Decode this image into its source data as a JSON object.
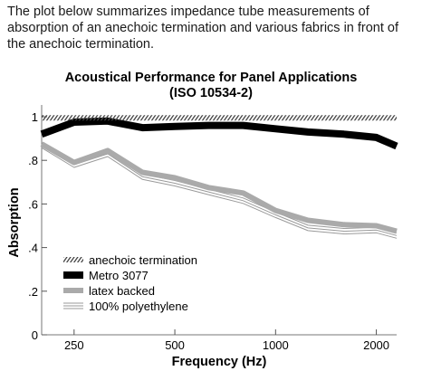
{
  "intro_text": "The plot below summarizes impedance tube measurements of absorption of an anechoic termination and various fabrics in front of the anechoic termination.",
  "chart_data": {
    "type": "line",
    "title": "Acoustical Performance for Panel Applications",
    "subtitle": "(ISO 10534-2)",
    "xlabel": "Frequency (Hz)",
    "ylabel": "Absorption",
    "x_scale": "log",
    "xlim": [
      200,
      2300
    ],
    "ylim": [
      0,
      1
    ],
    "x_ticks": [
      250,
      500,
      1000,
      2000
    ],
    "x_tick_labels": [
      "250",
      "500",
      "1000",
      "2000"
    ],
    "y_ticks": [
      0,
      0.2,
      0.4,
      0.6,
      0.8,
      1
    ],
    "y_tick_labels": [
      "0",
      ".2",
      ".4",
      ".6",
      ".8",
      "1"
    ],
    "grid": false,
    "legend_position": "lower-left",
    "x": [
      200,
      250,
      315,
      400,
      500,
      630,
      800,
      1000,
      1250,
      1600,
      2000,
      2300
    ],
    "series": [
      {
        "name": "anechoic termination",
        "style": "hatched",
        "color": "#555555",
        "values": [
          0.995,
          0.995,
          0.995,
          0.995,
          0.995,
          0.995,
          0.995,
          0.995,
          0.995,
          0.995,
          0.995,
          0.995
        ]
      },
      {
        "name": "Metro 3077",
        "style": "thick",
        "color": "#000000",
        "values": [
          0.92,
          0.975,
          0.98,
          0.95,
          0.955,
          0.96,
          0.96,
          0.945,
          0.93,
          0.92,
          0.905,
          0.865
        ]
      },
      {
        "name": "latex backed",
        "style": "medium",
        "color": "#aaaaaa",
        "values": [
          0.875,
          0.79,
          0.845,
          0.745,
          0.72,
          0.675,
          0.65,
          0.57,
          0.525,
          0.505,
          0.5,
          0.475
        ]
      },
      {
        "name": "100% polyethylene",
        "style": "triple",
        "color": "#8c8c8c",
        "values": [
          0.87,
          0.78,
          0.83,
          0.725,
          0.695,
          0.655,
          0.615,
          0.55,
          0.49,
          0.475,
          0.48,
          0.455
        ]
      }
    ]
  }
}
